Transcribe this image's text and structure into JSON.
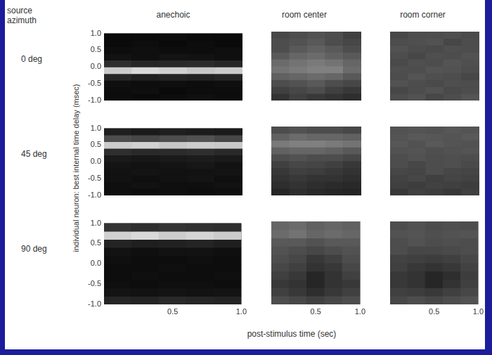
{
  "row_header": "source azimuth",
  "column_titles": [
    "anechoic",
    "room center",
    "room corner"
  ],
  "row_titles": [
    "0 deg",
    "45 deg",
    "90 deg"
  ],
  "xlabel": "post-stimulus time (sec)",
  "ylabel": "individual neuron: best internal time delay (msec)",
  "chart_data": [
    {
      "type": "heatmap",
      "tick_labels": "y",
      "xlim": [
        0,
        1
      ],
      "ylim": [
        -1,
        1
      ],
      "xticks": [
        0.5,
        {
          "value": 1,
          "label": "1.0"
        }
      ],
      "yticks": [
        {
          "value": -1,
          "label": "-1.0"
        },
        -0.5,
        {
          "value": 0,
          "label": "0.0"
        },
        0.5,
        {
          "value": 1,
          "label": "1.0"
        }
      ],
      "x_bins": [
        0,
        0.2,
        0.4,
        0.6,
        0.8,
        1
      ],
      "y_bins": [
        -1,
        -0.8,
        -0.6,
        -0.4,
        -0.2,
        0,
        0.2,
        0.4,
        0.6,
        0.8,
        1
      ],
      "zlim": [
        0,
        1
      ],
      "cells": [
        [
          0.05,
          0.04,
          0.05,
          0.06,
          0.05
        ],
        [
          0.05,
          0.06,
          0.04,
          0.05,
          0.05
        ],
        [
          0.06,
          0.05,
          0.06,
          0.05,
          0.06
        ],
        [
          0.15,
          0.12,
          0.14,
          0.13,
          0.15
        ],
        [
          0.8,
          0.85,
          0.82,
          0.78,
          0.8
        ],
        [
          0.18,
          0.15,
          0.16,
          0.17,
          0.15
        ],
        [
          0.07,
          0.06,
          0.08,
          0.07,
          0.06
        ],
        [
          0.05,
          0.06,
          0.05,
          0.05,
          0.06
        ],
        [
          0.04,
          0.05,
          0.04,
          0.05,
          0.04
        ],
        [
          0.04,
          0.04,
          0.05,
          0.04,
          0.04
        ]
      ]
    },
    {
      "type": "heatmap",
      "tick_labels": false,
      "xlim": [
        0,
        1
      ],
      "ylim": [
        -1,
        1
      ],
      "xticks": [
        0.5,
        {
          "value": 1,
          "label": "1.0"
        }
      ],
      "yticks": [
        {
          "value": -1,
          "label": "-1.0"
        },
        -0.5,
        {
          "value": 0,
          "label": "0.0"
        },
        0.5,
        {
          "value": 1,
          "label": "1.0"
        }
      ],
      "x_bins": [
        0,
        0.2,
        0.4,
        0.6,
        0.8,
        1
      ],
      "y_bins": [
        -1,
        -0.8,
        -0.6,
        -0.4,
        -0.2,
        0,
        0.2,
        0.4,
        0.6,
        0.8,
        1
      ],
      "zlim": [
        0,
        1
      ],
      "cells": [
        [
          0.2,
          0.25,
          0.22,
          0.2,
          0.18
        ],
        [
          0.25,
          0.28,
          0.3,
          0.25,
          0.22
        ],
        [
          0.3,
          0.32,
          0.35,
          0.3,
          0.28
        ],
        [
          0.38,
          0.4,
          0.42,
          0.4,
          0.35
        ],
        [
          0.45,
          0.48,
          0.5,
          0.5,
          0.42
        ],
        [
          0.42,
          0.45,
          0.48,
          0.45,
          0.4
        ],
        [
          0.35,
          0.4,
          0.42,
          0.38,
          0.35
        ],
        [
          0.3,
          0.35,
          0.38,
          0.35,
          0.3
        ],
        [
          0.3,
          0.32,
          0.35,
          0.3,
          0.28
        ],
        [
          0.28,
          0.3,
          0.32,
          0.3,
          0.25
        ]
      ]
    },
    {
      "type": "heatmap",
      "tick_labels": false,
      "xlim": [
        0,
        1
      ],
      "ylim": [
        -1,
        1
      ],
      "xticks": [
        0.5,
        {
          "value": 1,
          "label": "1.0"
        }
      ],
      "yticks": [
        {
          "value": -1,
          "label": "-1.0"
        },
        -0.5,
        {
          "value": 0,
          "label": "0.0"
        },
        0.5,
        {
          "value": 1,
          "label": "1.0"
        }
      ],
      "x_bins": [
        0,
        0.2,
        0.4,
        0.6,
        0.8,
        1
      ],
      "y_bins": [
        -1,
        -0.8,
        -0.6,
        -0.4,
        -0.2,
        0,
        0.2,
        0.4,
        0.6,
        0.8,
        1
      ],
      "zlim": [
        0,
        1
      ],
      "cells": [
        [
          0.3,
          0.32,
          0.28,
          0.3,
          0.33
        ],
        [
          0.28,
          0.3,
          0.32,
          0.29,
          0.3
        ],
        [
          0.32,
          0.3,
          0.29,
          0.31,
          0.3
        ],
        [
          0.3,
          0.33,
          0.31,
          0.3,
          0.28
        ],
        [
          0.31,
          0.3,
          0.33,
          0.32,
          0.3
        ],
        [
          0.29,
          0.31,
          0.3,
          0.33,
          0.31
        ],
        [
          0.3,
          0.28,
          0.31,
          0.3,
          0.32
        ],
        [
          0.32,
          0.3,
          0.29,
          0.31,
          0.3
        ],
        [
          0.3,
          0.31,
          0.32,
          0.28,
          0.3
        ],
        [
          0.28,
          0.3,
          0.3,
          0.31,
          0.29
        ]
      ]
    },
    {
      "type": "heatmap",
      "tick_labels": "y",
      "xlim": [
        0,
        1
      ],
      "ylim": [
        -1,
        1
      ],
      "xticks": [
        0.5,
        {
          "value": 1,
          "label": "1.0"
        }
      ],
      "yticks": [
        {
          "value": -1,
          "label": "-1.0"
        },
        -0.5,
        {
          "value": 0,
          "label": "0.0"
        },
        0.5,
        {
          "value": 1,
          "label": "1.0"
        }
      ],
      "x_bins": [
        0,
        0.2,
        0.4,
        0.6,
        0.8,
        1
      ],
      "y_bins": [
        -1,
        -0.8,
        -0.6,
        -0.4,
        -0.2,
        0,
        0.2,
        0.4,
        0.6,
        0.8,
        1
      ],
      "zlim": [
        0,
        1
      ],
      "cells": [
        [
          0.06,
          0.05,
          0.06,
          0.05,
          0.06
        ],
        [
          0.06,
          0.07,
          0.06,
          0.06,
          0.07
        ],
        [
          0.07,
          0.06,
          0.07,
          0.08,
          0.06
        ],
        [
          0.07,
          0.08,
          0.07,
          0.07,
          0.08
        ],
        [
          0.08,
          0.07,
          0.08,
          0.09,
          0.07
        ],
        [
          0.1,
          0.09,
          0.1,
          0.11,
          0.1
        ],
        [
          0.18,
          0.16,
          0.17,
          0.18,
          0.16
        ],
        [
          0.8,
          0.82,
          0.78,
          0.8,
          0.79
        ],
        [
          0.3,
          0.28,
          0.3,
          0.32,
          0.28
        ],
        [
          0.12,
          0.1,
          0.12,
          0.11,
          0.1
        ]
      ]
    },
    {
      "type": "heatmap",
      "tick_labels": false,
      "xlim": [
        0,
        1
      ],
      "ylim": [
        -1,
        1
      ],
      "xticks": [
        0.5,
        {
          "value": 1,
          "label": "1.0"
        }
      ],
      "yticks": [
        {
          "value": -1,
          "label": "-1.0"
        },
        -0.5,
        {
          "value": 0,
          "label": "0.0"
        },
        0.5,
        {
          "value": 1,
          "label": "1.0"
        }
      ],
      "x_bins": [
        0,
        0.2,
        0.4,
        0.6,
        0.8,
        1
      ],
      "y_bins": [
        -1,
        -0.8,
        -0.6,
        -0.4,
        -0.2,
        0,
        0.2,
        0.4,
        0.6,
        0.8,
        1
      ],
      "zlim": [
        0,
        1
      ],
      "cells": [
        [
          0.15,
          0.18,
          0.16,
          0.15,
          0.14
        ],
        [
          0.18,
          0.2,
          0.18,
          0.17,
          0.16
        ],
        [
          0.2,
          0.22,
          0.2,
          0.2,
          0.18
        ],
        [
          0.22,
          0.25,
          0.24,
          0.22,
          0.2
        ],
        [
          0.25,
          0.28,
          0.27,
          0.25,
          0.22
        ],
        [
          0.3,
          0.32,
          0.3,
          0.3,
          0.28
        ],
        [
          0.38,
          0.4,
          0.4,
          0.38,
          0.35
        ],
        [
          0.48,
          0.5,
          0.5,
          0.48,
          0.45
        ],
        [
          0.38,
          0.42,
          0.4,
          0.4,
          0.38
        ],
        [
          0.3,
          0.32,
          0.3,
          0.3,
          0.28
        ]
      ]
    },
    {
      "type": "heatmap",
      "tick_labels": false,
      "xlim": [
        0,
        1
      ],
      "ylim": [
        -1,
        1
      ],
      "xticks": [
        0.5,
        {
          "value": 1,
          "label": "1.0"
        }
      ],
      "yticks": [
        {
          "value": -1,
          "label": "-1.0"
        },
        -0.5,
        {
          "value": 0,
          "label": "0.0"
        },
        0.5,
        {
          "value": 1,
          "label": "1.0"
        }
      ],
      "x_bins": [
        0,
        0.2,
        0.4,
        0.6,
        0.8,
        1
      ],
      "y_bins": [
        -1,
        -0.8,
        -0.6,
        -0.4,
        -0.2,
        0,
        0.2,
        0.4,
        0.6,
        0.8,
        1
      ],
      "zlim": [
        0,
        1
      ],
      "cells": [
        [
          0.22,
          0.25,
          0.24,
          0.22,
          0.25
        ],
        [
          0.25,
          0.24,
          0.26,
          0.25,
          0.24
        ],
        [
          0.26,
          0.28,
          0.25,
          0.27,
          0.26
        ],
        [
          0.28,
          0.27,
          0.3,
          0.28,
          0.27
        ],
        [
          0.3,
          0.28,
          0.3,
          0.31,
          0.29
        ],
        [
          0.3,
          0.32,
          0.3,
          0.31,
          0.3
        ],
        [
          0.32,
          0.33,
          0.31,
          0.32,
          0.33
        ],
        [
          0.34,
          0.32,
          0.35,
          0.33,
          0.32
        ],
        [
          0.33,
          0.35,
          0.34,
          0.33,
          0.35
        ],
        [
          0.32,
          0.33,
          0.32,
          0.34,
          0.33
        ]
      ]
    },
    {
      "type": "heatmap",
      "xlim": [
        0,
        1
      ],
      "ylim": [
        -1,
        1
      ],
      "xticks": [
        0.5,
        {
          "value": 1,
          "label": "1.0"
        }
      ],
      "yticks": [
        {
          "value": -1,
          "label": "-1.0"
        },
        -0.5,
        {
          "value": 0,
          "label": "0.0"
        },
        0.5,
        {
          "value": 1,
          "label": "1.0"
        }
      ],
      "x_bins": [
        0,
        0.2,
        0.4,
        0.6,
        0.8,
        1
      ],
      "y_bins": [
        -1,
        -0.8,
        -0.6,
        -0.4,
        -0.2,
        0,
        0.2,
        0.4,
        0.6,
        0.8,
        1
      ],
      "zlim": [
        0,
        1
      ],
      "cells": [
        [
          0.15,
          0.14,
          0.16,
          0.15,
          0.14
        ],
        [
          0.08,
          0.07,
          0.08,
          0.07,
          0.08
        ],
        [
          0.06,
          0.05,
          0.06,
          0.06,
          0.05
        ],
        [
          0.05,
          0.06,
          0.05,
          0.05,
          0.06
        ],
        [
          0.05,
          0.05,
          0.06,
          0.05,
          0.05
        ],
        [
          0.06,
          0.05,
          0.05,
          0.06,
          0.05
        ],
        [
          0.07,
          0.06,
          0.07,
          0.07,
          0.06
        ],
        [
          0.14,
          0.12,
          0.13,
          0.14,
          0.12
        ],
        [
          0.82,
          0.85,
          0.8,
          0.83,
          0.8
        ],
        [
          0.2,
          0.18,
          0.2,
          0.19,
          0.18
        ]
      ]
    },
    {
      "type": "heatmap",
      "tick_labels": "x",
      "xlim": [
        0,
        1
      ],
      "ylim": [
        -1,
        1
      ],
      "xticks": [
        0.5,
        {
          "value": 1,
          "label": "1.0"
        }
      ],
      "yticks": [
        {
          "value": -1,
          "label": "-1.0"
        },
        -0.5,
        {
          "value": 0,
          "label": "0.0"
        },
        0.5,
        {
          "value": 1,
          "label": "1.0"
        }
      ],
      "x_bins": [
        0,
        0.2,
        0.4,
        0.6,
        0.8,
        1
      ],
      "y_bins": [
        -1,
        -0.8,
        -0.6,
        -0.4,
        -0.2,
        0,
        0.2,
        0.4,
        0.6,
        0.8,
        1
      ],
      "zlim": [
        0,
        1
      ],
      "cells": [
        [
          0.3,
          0.28,
          0.25,
          0.28,
          0.3
        ],
        [
          0.25,
          0.22,
          0.18,
          0.22,
          0.25
        ],
        [
          0.22,
          0.2,
          0.15,
          0.2,
          0.22
        ],
        [
          0.25,
          0.22,
          0.15,
          0.2,
          0.25
        ],
        [
          0.28,
          0.25,
          0.2,
          0.22,
          0.28
        ],
        [
          0.3,
          0.28,
          0.22,
          0.25,
          0.3
        ],
        [
          0.32,
          0.3,
          0.28,
          0.3,
          0.32
        ],
        [
          0.35,
          0.35,
          0.32,
          0.35,
          0.35
        ],
        [
          0.42,
          0.45,
          0.4,
          0.42,
          0.4
        ],
        [
          0.4,
          0.42,
          0.38,
          0.4,
          0.38
        ]
      ]
    },
    {
      "type": "heatmap",
      "tick_labels": "x",
      "xlim": [
        0,
        1
      ],
      "ylim": [
        -1,
        1
      ],
      "xticks": [
        0.5,
        {
          "value": 1,
          "label": "1.0"
        }
      ],
      "yticks": [
        {
          "value": -1,
          "label": "-1.0"
        },
        -0.5,
        {
          "value": 0,
          "label": "0.0"
        },
        0.5,
        {
          "value": 1,
          "label": "1.0"
        }
      ],
      "x_bins": [
        0,
        0.2,
        0.4,
        0.6,
        0.8,
        1
      ],
      "y_bins": [
        -1,
        -0.8,
        -0.6,
        -0.4,
        -0.2,
        0,
        0.2,
        0.4,
        0.6,
        0.8,
        1
      ],
      "zlim": [
        0,
        1
      ],
      "cells": [
        [
          0.28,
          0.3,
          0.28,
          0.3,
          0.32
        ],
        [
          0.25,
          0.24,
          0.22,
          0.25,
          0.28
        ],
        [
          0.22,
          0.2,
          0.15,
          0.2,
          0.25
        ],
        [
          0.22,
          0.2,
          0.15,
          0.18,
          0.24
        ],
        [
          0.25,
          0.22,
          0.2,
          0.22,
          0.26
        ],
        [
          0.26,
          0.25,
          0.24,
          0.25,
          0.28
        ],
        [
          0.3,
          0.28,
          0.28,
          0.29,
          0.3
        ],
        [
          0.3,
          0.32,
          0.3,
          0.31,
          0.3
        ],
        [
          0.32,
          0.33,
          0.31,
          0.32,
          0.33
        ],
        [
          0.3,
          0.32,
          0.3,
          0.31,
          0.3
        ]
      ]
    }
  ]
}
